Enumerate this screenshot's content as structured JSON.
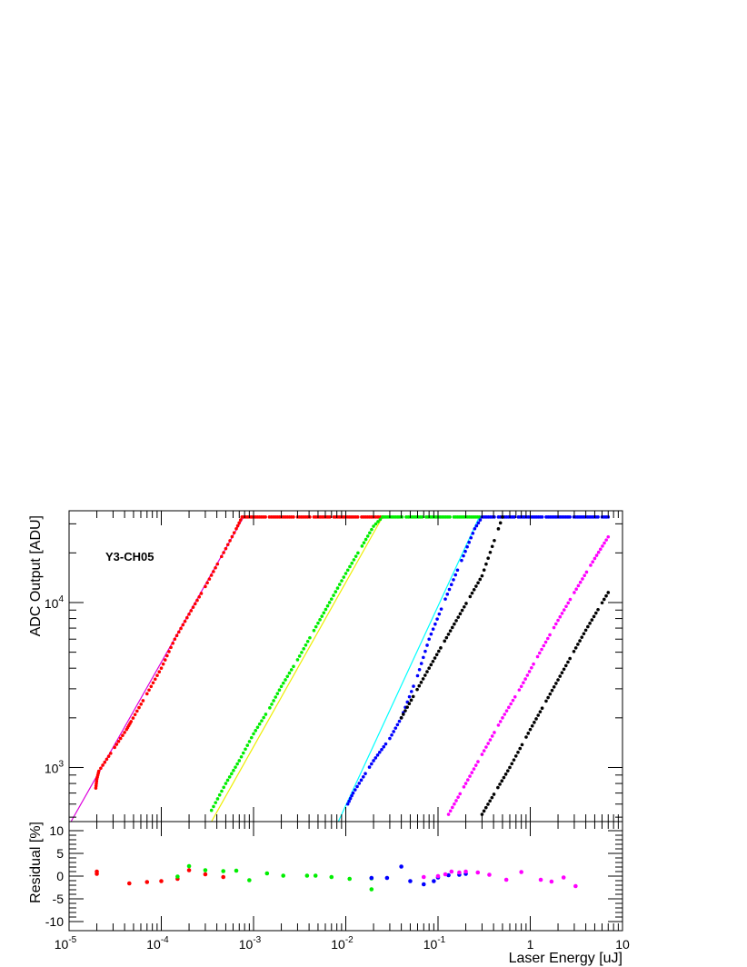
{
  "chart_data": [
    {
      "type": "scatter",
      "panel": "main",
      "annotation": "Y3-CH05",
      "ylabel": "ADC Output [ADU]",
      "xscale": "log",
      "yscale": "log",
      "xlim": [
        1e-05,
        10
      ],
      "ylim": [
        470,
        36000
      ],
      "y_tick_labels": [
        "10^3",
        "10^4"
      ],
      "saturation_level": 33000,
      "series": [
        {
          "color": "#ff0000",
          "x": [
            1.95e-05,
            2e-05,
            2.1e-05,
            4.2e-05,
            4.7e-05,
            7e-05,
            0.0001,
            0.00014,
            0.0002,
            0.0003,
            0.00045,
            0.00065,
            0.00075,
            0.001,
            0.002,
            0.003,
            0.005,
            0.01,
            0.02,
            0.025
          ],
          "y": [
            750,
            850,
            950,
            1700,
            1900,
            2800,
            4000,
            6000,
            8500,
            12500,
            19000,
            28000,
            33000,
            33000,
            33000,
            33000,
            33000,
            33000,
            33000,
            33000
          ]
        },
        {
          "color": "#00ee00",
          "x": [
            0.00035,
            0.0005,
            0.0007,
            0.001,
            0.0015,
            0.002,
            0.003,
            0.005,
            0.007,
            0.01,
            0.015,
            0.02,
            0.025,
            0.03,
            0.05,
            0.1,
            0.2,
            0.28
          ],
          "y": [
            550,
            800,
            1100,
            1600,
            2300,
            3100,
            4500,
            7500,
            10500,
            15000,
            22000,
            29000,
            33000,
            33000,
            33000,
            33000,
            33000,
            33000
          ]
        },
        {
          "color": "#0000ff",
          "x": [
            0.0105,
            0.012,
            0.02,
            0.03,
            0.04,
            0.06,
            0.08,
            0.12,
            0.18,
            0.25,
            0.3,
            0.5,
            1,
            2,
            4,
            7
          ],
          "y": [
            600,
            700,
            1100,
            1500,
            2000,
            3600,
            6000,
            10500,
            18000,
            28000,
            33000,
            33000,
            33000,
            33000,
            33000,
            33000
          ]
        },
        {
          "color": "#ff00ff",
          "x": [
            0.13,
            0.2,
            0.3,
            0.5,
            0.8,
            1.2,
            2,
            3,
            5,
            7
          ],
          "y": [
            520,
            800,
            1200,
            2000,
            3100,
            4700,
            7800,
            11500,
            18500,
            25000
          ]
        },
        {
          "color": "#000000",
          "x": [
            0.04,
            0.08,
            0.15,
            0.3,
            0.5
          ],
          "y": [
            2000,
            4000,
            7400,
            14500,
            33000
          ]
        },
        {
          "color": "#000000",
          "x": [
            0.3,
            0.6,
            1,
            2,
            4,
            7
          ],
          "y": [
            520,
            1000,
            1700,
            3400,
            6800,
            11500
          ]
        }
      ],
      "fits": [
        {
          "color": "#dd00dd",
          "x": [
            1.05e-05,
            0.00078
          ],
          "y": [
            470,
            33000
          ]
        },
        {
          "color": "#eeee00",
          "x": [
            0.00035,
            0.025
          ],
          "y": [
            470,
            33000
          ]
        },
        {
          "color": "#00ffff",
          "x": [
            0.0083,
            0.28
          ],
          "y": [
            470,
            33000
          ]
        }
      ]
    },
    {
      "type": "scatter",
      "panel": "residual",
      "xlabel": "Laser Energy [uJ]",
      "ylabel": "Residual [%]",
      "xscale": "log",
      "xlim": [
        1e-05,
        10
      ],
      "ylim": [
        -12,
        12
      ],
      "x_tick_labels": [
        "10^-5",
        "10^-4",
        "10^-3",
        "10^-2",
        "10^-1",
        "1",
        "10"
      ],
      "y_tick_labels": [
        "10",
        "5",
        "0",
        "-5",
        "-10"
      ],
      "series": [
        {
          "color": "#ff0000",
          "x": [
            2e-05,
            2e-05,
            4.5e-05,
            7e-05,
            0.0001,
            0.00015,
            0.0002,
            0.0003,
            0.00047
          ],
          "y": [
            1.0,
            0.5,
            -1.6,
            -1.3,
            -1.1,
            -0.6,
            1.3,
            0.4,
            -0.2
          ]
        },
        {
          "color": "#00ee00",
          "x": [
            0.00015,
            0.0002,
            0.0003,
            0.00047,
            0.00065,
            0.0009,
            0.0014,
            0.0021,
            0.0038,
            0.0047,
            0.007,
            0.011,
            0.019,
            0.019
          ],
          "y": [
            -0.1,
            2.2,
            1.3,
            1.1,
            1.2,
            -0.9,
            0.6,
            0.1,
            0.1,
            0.1,
            -0.2,
            -0.6,
            -0.5,
            -2.9
          ]
        },
        {
          "color": "#0000ff",
          "x": [
            0.019,
            0.028,
            0.04,
            0.05,
            0.07,
            0.09,
            0.1,
            0.13,
            0.17,
            0.2
          ],
          "y": [
            -0.4,
            -0.4,
            2.1,
            -1.1,
            -1.8,
            -1.1,
            -0.3,
            0.2,
            0.3,
            0.5
          ]
        },
        {
          "color": "#ff00ff",
          "x": [
            0.07,
            0.1,
            0.12,
            0.14,
            0.17,
            0.2,
            0.27,
            0.36,
            0.55,
            0.8,
            1.3,
            1.7,
            2.3,
            3.1
          ],
          "y": [
            -0.2,
            0.0,
            0.4,
            1.0,
            0.8,
            1.0,
            0.8,
            0.3,
            -0.8,
            0.9,
            -0.8,
            -1.2,
            -0.3,
            -2.2
          ]
        }
      ]
    }
  ]
}
